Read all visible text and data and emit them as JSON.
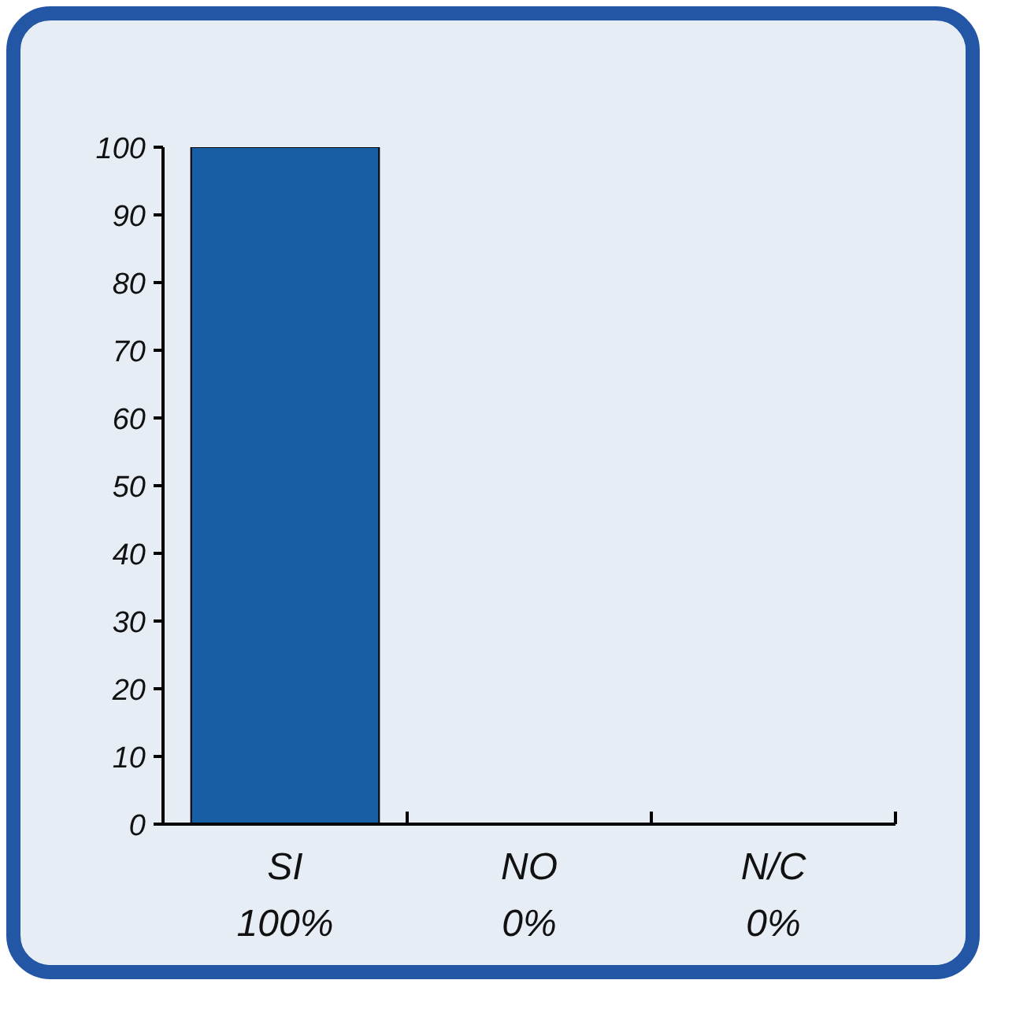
{
  "chart_data": {
    "type": "bar",
    "categories": [
      "SI",
      "NO",
      "N/C"
    ],
    "values": [
      100,
      0,
      0
    ],
    "color": "#175ea5",
    "value_labels": [
      "100%",
      "0%",
      "0%"
    ],
    "ylim": [
      0,
      100
    ],
    "yticks": [
      0,
      10,
      20,
      30,
      40,
      50,
      60,
      70,
      80,
      90,
      100
    ],
    "grid": false
  }
}
